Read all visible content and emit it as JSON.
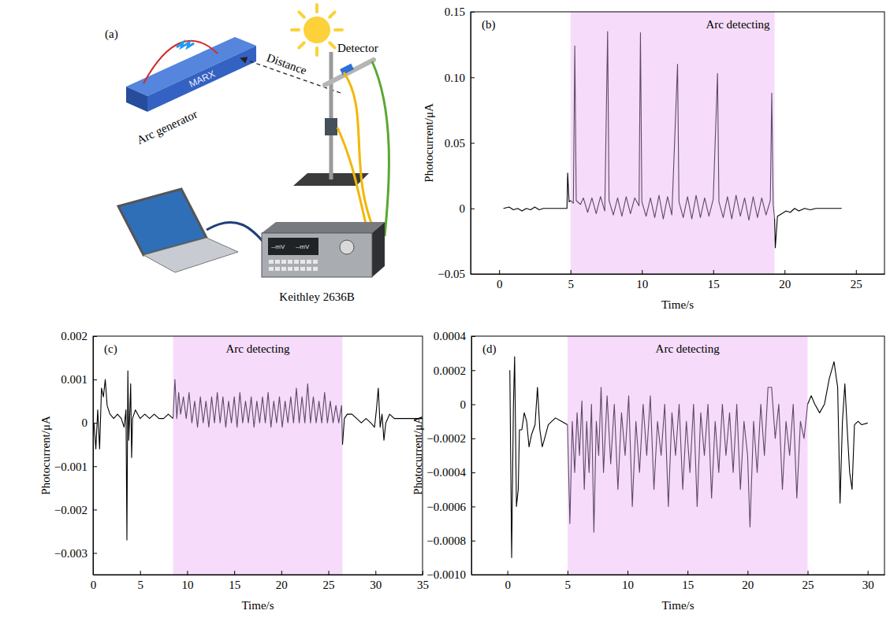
{
  "diagram": {
    "panel_label": "(a)",
    "generator_text": "MARX",
    "generator_label": "Arc generator",
    "distance_label": "Distance",
    "detector_label": "Detector",
    "instrument_label": "Keithley 2636B",
    "screen_text": [
      "--mV",
      "--mV"
    ]
  },
  "chart_data": [
    {
      "type": "line",
      "panel_label": "(b)",
      "x_label": "Time/s",
      "y_label": "Photocurrent/μA",
      "xlim": [
        -2,
        27
      ],
      "xticks": [
        0,
        5,
        10,
        15,
        20,
        25
      ],
      "ylim": [
        -0.05,
        0.15
      ],
      "yticks": [
        {
          "value": -0.05,
          "label": "−0.05"
        },
        0,
        0.05,
        {
          "value": 0.1,
          "label": "0.10"
        },
        0.15
      ],
      "annotations": [
        {
          "text": "Arc detecting",
          "x_range": [
            5,
            19.3
          ],
          "color": "#f6dcfa"
        }
      ],
      "series": [
        {
          "color": "#000000",
          "x": [
            0.3,
            0.7,
            1.0,
            1.3,
            1.6,
            1.9,
            2.2,
            2.5,
            2.8,
            3.1,
            3.5,
            4.0,
            4.5,
            4.75,
            4.8,
            4.9,
            5.0
          ],
          "values": [
            0,
            0.001,
            -0.001,
            0,
            -0.002,
            0,
            -0.001,
            0.001,
            -0.001,
            0,
            0,
            0,
            0,
            0,
            0.027,
            0.005,
            0.006
          ]
        },
        {
          "color": "#5c4a66",
          "x": [
            5.0,
            5.2,
            5.3,
            5.4,
            5.7,
            5.9,
            6.2,
            6.5,
            6.8,
            7.1,
            7.4,
            7.6,
            7.7,
            8.0,
            8.3,
            8.6,
            8.9,
            9.2,
            9.5,
            9.8,
            9.9,
            10.0,
            10.3,
            10.6,
            10.9,
            11.2,
            11.5,
            11.8,
            12.1,
            12.5,
            12.6,
            12.9,
            13.2,
            13.5,
            13.8,
            14.1,
            14.4,
            14.7,
            15.0,
            15.3,
            15.4,
            15.7,
            16.0,
            16.3,
            16.6,
            16.9,
            17.2,
            17.5,
            17.8,
            18.1,
            18.4,
            18.7,
            19.0,
            19.1,
            19.2,
            19.3
          ],
          "values": [
            0.006,
            0.004,
            0.124,
            0.006,
            0.003,
            0.008,
            -0.003,
            0.008,
            -0.004,
            0.009,
            -0.002,
            0.135,
            0.006,
            -0.005,
            0.008,
            -0.006,
            0.009,
            -0.004,
            0.008,
            0.002,
            0.134,
            0.005,
            -0.006,
            0.008,
            -0.007,
            0.01,
            -0.008,
            0.009,
            -0.005,
            0.11,
            0.005,
            -0.007,
            0.009,
            -0.008,
            0.01,
            -0.007,
            0.008,
            -0.006,
            0.007,
            0.103,
            0.005,
            -0.007,
            0.009,
            -0.008,
            0.01,
            -0.006,
            0.008,
            -0.009,
            0.009,
            -0.007,
            0.008,
            -0.005,
            0.006,
            0.088,
            0.003,
            -0.008
          ]
        },
        {
          "color": "#000000",
          "x": [
            19.3,
            19.35,
            19.5,
            19.8,
            20.1,
            20.4,
            20.7,
            21.0,
            21.4,
            21.8,
            22.2,
            22.6,
            23.0,
            23.5,
            24.0
          ],
          "values": [
            -0.008,
            -0.03,
            -0.006,
            -0.004,
            -0.002,
            -0.003,
            0,
            -0.002,
            0,
            -0.001,
            0,
            0,
            0,
            0,
            0
          ]
        }
      ]
    },
    {
      "type": "line",
      "panel_label": "(c)",
      "x_label": "Time/s",
      "y_label": "Photocurrent/μA",
      "xlim": [
        0,
        35
      ],
      "xticks": [
        0,
        5,
        10,
        15,
        20,
        25,
        30,
        35
      ],
      "ylim": [
        -0.0035,
        0.002
      ],
      "yticks": [
        {
          "value": -0.003,
          "label": "−0.003"
        },
        {
          "value": -0.002,
          "label": "−0.002"
        },
        {
          "value": -0.001,
          "label": "−0.001"
        },
        0,
        0.001,
        0.002
      ],
      "annotations": [
        {
          "text": "Arc detecting",
          "x_range": [
            8.5,
            26.5
          ],
          "color": "#f6dcfa"
        }
      ],
      "series": [
        {
          "color": "#000000",
          "x": [
            0.1,
            0.3,
            0.5,
            0.7,
            0.9,
            1.1,
            1.3,
            1.5,
            1.8,
            2.2,
            2.6,
            3.0,
            3.3,
            3.5,
            3.6,
            3.7,
            3.8,
            3.9,
            4.0,
            4.1,
            4.2,
            4.5,
            5.0,
            5.5,
            6.0,
            6.5,
            7.0,
            7.5,
            8.0,
            8.5
          ],
          "values": [
            0,
            -0.0006,
            0.0003,
            -0.0006,
            0.0008,
            0.0006,
            0.001,
            0.0004,
            0.0002,
            0.0001,
            0.0002,
            0.0001,
            -0.0001,
            0.0003,
            -0.0027,
            0.0012,
            -0.0004,
            0.0002,
            0.0009,
            -0.0008,
            0.0001,
            0.0003,
            0.0001,
            0.0002,
            0.0001,
            0.0002,
            0.0001,
            0.0001,
            0.0002,
            0.0001
          ]
        },
        {
          "color": "#5c4a66",
          "x": [
            8.5,
            8.7,
            8.9,
            9.1,
            9.3,
            9.6,
            9.9,
            10.2,
            10.5,
            10.8,
            11.1,
            11.4,
            11.7,
            12.0,
            12.3,
            12.6,
            12.9,
            13.2,
            13.5,
            13.8,
            14.1,
            14.4,
            14.7,
            15.0,
            15.3,
            15.6,
            15.9,
            16.2,
            16.5,
            16.8,
            17.1,
            17.4,
            17.7,
            18.0,
            18.3,
            18.6,
            18.9,
            19.2,
            19.5,
            19.8,
            20.1,
            20.4,
            20.7,
            21.0,
            21.3,
            21.6,
            21.9,
            22.2,
            22.5,
            22.8,
            23.1,
            23.4,
            23.7,
            24.0,
            24.3,
            24.6,
            24.9,
            25.2,
            25.5,
            25.8,
            26.1,
            26.4,
            26.5
          ],
          "values": [
            0.0001,
            0.001,
            0.0001,
            0.0007,
            0.0002,
            0.0006,
            0.0001,
            0.0007,
            0,
            0.0005,
            -0.0001,
            0.0006,
            0,
            0.0005,
            -0.0001,
            0.0006,
            0,
            0.0007,
            0,
            0.0006,
            -0.0001,
            0.0005,
            0,
            0.0006,
            -0.0001,
            0.0007,
            0,
            0.0005,
            0,
            0.0006,
            -0.0001,
            0.0005,
            0,
            0.0006,
            0,
            0.0007,
            -0.0001,
            0.0005,
            0,
            0.0006,
            -0.0001,
            0.0005,
            0,
            0.0006,
            0,
            0.0008,
            0,
            0.0006,
            0,
            0.0009,
            0,
            0.0006,
            0,
            0.0005,
            0,
            0.0007,
            0,
            0.0005,
            0,
            0.0004,
            0,
            0.0004,
            -0.0005
          ]
        },
        {
          "color": "#000000",
          "x": [
            26.5,
            26.7,
            27.0,
            27.5,
            28.0,
            28.5,
            29.0,
            29.5,
            29.9,
            30.1,
            30.3,
            30.5,
            30.7,
            30.9,
            31.1,
            31.5,
            32.0,
            33.0,
            34.0,
            35.0
          ],
          "values": [
            -0.0005,
            0.0001,
            0.0002,
            0.0002,
            0.0001,
            0,
            0.0001,
            0,
            -0.0001,
            0.0003,
            0.0008,
            -0.0001,
            0.0002,
            -0.0004,
            0,
            0.0002,
            0.0001,
            0.0001,
            0.0001,
            0.0001
          ]
        }
      ]
    },
    {
      "type": "line",
      "panel_label": "(d)",
      "x_label": "Time/s",
      "y_label": "Photocurrent/μA",
      "xlim": [
        -3,
        31.4
      ],
      "xticks": [
        0,
        5,
        10,
        15,
        20,
        25,
        30
      ],
      "ylim": [
        -0.001,
        0.0004
      ],
      "yticks": [
        {
          "value": -0.001,
          "label": "−0.0010"
        },
        {
          "value": -0.0008,
          "label": "−0.0008"
        },
        {
          "value": -0.0006,
          "label": "−0.0006"
        },
        {
          "value": -0.0004,
          "label": "−0.0004"
        },
        {
          "value": -0.0002,
          "label": "−0.0002"
        },
        0,
        0.0002,
        0.0004
      ],
      "annotations": [
        {
          "text": "Arc detecting",
          "x_range": [
            5,
            25
          ],
          "color": "#f6dcfa"
        }
      ],
      "series": [
        {
          "color": "#000000",
          "x": [
            0.2,
            0.35,
            0.5,
            0.6,
            0.75,
            0.9,
            1.0,
            1.2,
            1.4,
            1.6,
            1.8,
            2.0,
            2.3,
            2.5,
            2.7,
            2.9,
            3.1,
            3.4,
            3.7,
            4.0,
            4.5,
            5.0
          ],
          "values": [
            0.0002,
            -0.0009,
            0,
            0.00028,
            -0.0006,
            -0.0005,
            -0.00015,
            -0.00015,
            -5e-05,
            -0.0001,
            -0.00025,
            -0.00018,
            -0.00012,
            0.0001,
            -0.00015,
            -0.00025,
            -0.0002,
            -0.00012,
            -0.0001,
            -8e-05,
            -0.0001,
            -0.00012
          ]
        },
        {
          "color": "#5c4a66",
          "x": [
            5.0,
            5.2,
            5.4,
            5.6,
            5.8,
            6.0,
            6.2,
            6.4,
            6.6,
            6.8,
            7.0,
            7.2,
            7.4,
            7.6,
            7.8,
            8.0,
            8.3,
            8.6,
            8.9,
            9.2,
            9.5,
            9.8,
            10.1,
            10.4,
            10.7,
            11.0,
            11.3,
            11.6,
            11.9,
            12.2,
            12.5,
            12.8,
            13.1,
            13.4,
            13.7,
            14.0,
            14.3,
            14.6,
            14.9,
            15.2,
            15.5,
            15.8,
            16.1,
            16.4,
            16.7,
            17.0,
            17.3,
            17.6,
            17.9,
            18.2,
            18.5,
            18.8,
            19.1,
            19.4,
            19.7,
            20.0,
            20.2,
            20.5,
            20.8,
            21.1,
            21.4,
            21.7,
            22.0,
            22.3,
            22.6,
            22.9,
            23.2,
            23.5,
            23.8,
            24.1,
            24.4,
            24.7,
            25.0
          ],
          "values": [
            -0.00012,
            -0.0007,
            -0.0001,
            -0.0004,
            -5e-05,
            -0.0003,
            2e-05,
            -0.0005,
            -0.0001,
            -0.0004,
            0,
            -0.00075,
            -0.0001,
            -0.0003,
            0.0001,
            -0.0004,
            5e-05,
            -0.00035,
            0,
            -0.0005,
            -5e-05,
            -0.0003,
            5e-05,
            -0.0006,
            -0.0001,
            -0.0004,
            0,
            -0.0003,
            5e-05,
            -0.0005,
            -0.0001,
            -0.0003,
            0,
            -0.0006,
            -5e-05,
            -0.0003,
            0,
            -0.0005,
            -0.0001,
            -0.0004,
            0,
            -0.0006,
            -5e-05,
            -0.0003,
            0,
            -0.00055,
            -0.0001,
            -0.0004,
            0,
            -0.0003,
            -5e-05,
            -0.0004,
            0,
            -0.0005,
            -0.0001,
            -0.0003,
            -0.00072,
            -0.0001,
            -0.0004,
            0,
            -0.0003,
            0.0001,
            0.0001,
            -0.0002,
            0,
            -0.0005,
            -0.0001,
            -0.0003,
            0,
            -0.00055,
            -0.0001,
            -0.0002,
            0
          ]
        },
        {
          "color": "#000000",
          "x": [
            25.0,
            25.3,
            25.6,
            26.0,
            26.4,
            26.8,
            27.2,
            27.5,
            27.7,
            27.9,
            28.1,
            28.3,
            28.5,
            28.7,
            28.9,
            29.2,
            29.5,
            30.0
          ],
          "values": [
            0,
            5e-05,
            0,
            -5e-05,
            0,
            0.00015,
            0.00025,
            0.0001,
            -0.00058,
            -0.0001,
            0.00012,
            -0.00015,
            -0.0004,
            -0.0005,
            -0.00012,
            -0.0001,
            -0.00012,
            -0.00011
          ]
        }
      ]
    }
  ]
}
